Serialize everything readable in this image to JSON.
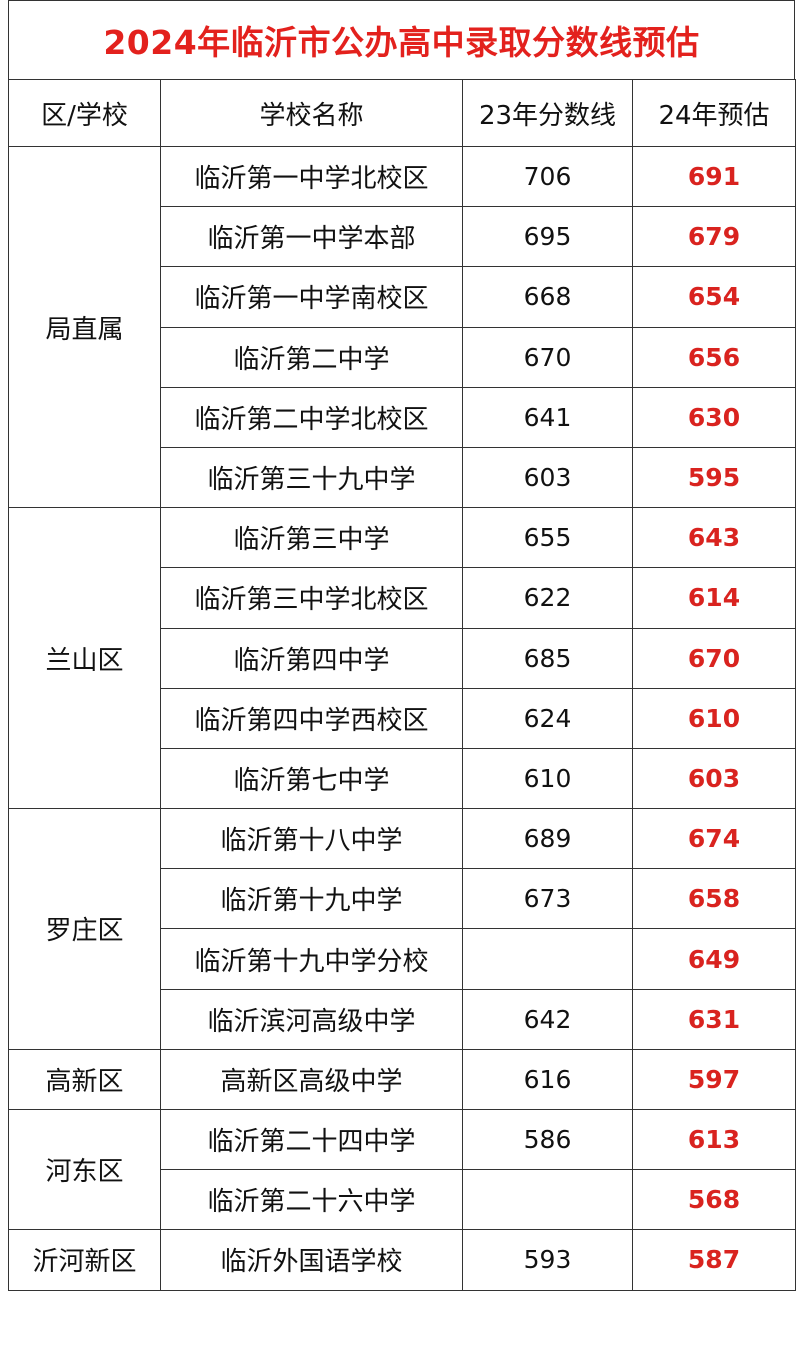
{
  "title": "2024年临沂市公办高中录取分数线预估",
  "headers": [
    "区/学校",
    "学校名称",
    "23年分数线",
    "24年预估"
  ],
  "colors": {
    "title": "#e3211d",
    "prediction": "#d9231f"
  },
  "groups": [
    {
      "district": "局直属",
      "rows": [
        {
          "school": "临沂第一中学北校区",
          "score23": "706",
          "pred24": "691"
        },
        {
          "school": "临沂第一中学本部",
          "score23": "695",
          "pred24": "679"
        },
        {
          "school": "临沂第一中学南校区",
          "score23": "668",
          "pred24": "654"
        },
        {
          "school": "临沂第二中学",
          "score23": "670",
          "pred24": "656"
        },
        {
          "school": "临沂第二中学北校区",
          "score23": "641",
          "pred24": "630"
        },
        {
          "school": "临沂第三十九中学",
          "score23": "603",
          "pred24": "595"
        }
      ]
    },
    {
      "district": "兰山区",
      "rows": [
        {
          "school": "临沂第三中学",
          "score23": "655",
          "pred24": "643"
        },
        {
          "school": "临沂第三中学北校区",
          "score23": "622",
          "pred24": "614"
        },
        {
          "school": "临沂第四中学",
          "score23": "685",
          "pred24": "670"
        },
        {
          "school": "临沂第四中学西校区",
          "score23": "624",
          "pred24": "610"
        },
        {
          "school": "临沂第七中学",
          "score23": "610",
          "pred24": "603"
        }
      ]
    },
    {
      "district": "罗庄区",
      "rows": [
        {
          "school": "临沂第十八中学",
          "score23": "689",
          "pred24": "674"
        },
        {
          "school": "临沂第十九中学",
          "score23": "673",
          "pred24": "658"
        },
        {
          "school": "临沂第十九中学分校",
          "score23": "",
          "pred24": "649"
        },
        {
          "school": "临沂滨河高级中学",
          "score23": "642",
          "pred24": "631"
        }
      ]
    },
    {
      "district": "高新区",
      "rows": [
        {
          "school": "高新区高级中学",
          "score23": "616",
          "pred24": "597"
        }
      ]
    },
    {
      "district": "河东区",
      "rows": [
        {
          "school": "临沂第二十四中学",
          "score23": "586",
          "pred24": "613"
        },
        {
          "school": "临沂第二十六中学",
          "score23": "",
          "pred24": "568"
        }
      ]
    },
    {
      "district": "沂河新区",
      "rows": [
        {
          "school": "临沂外国语学校",
          "score23": "593",
          "pred24": "587"
        }
      ]
    }
  ]
}
